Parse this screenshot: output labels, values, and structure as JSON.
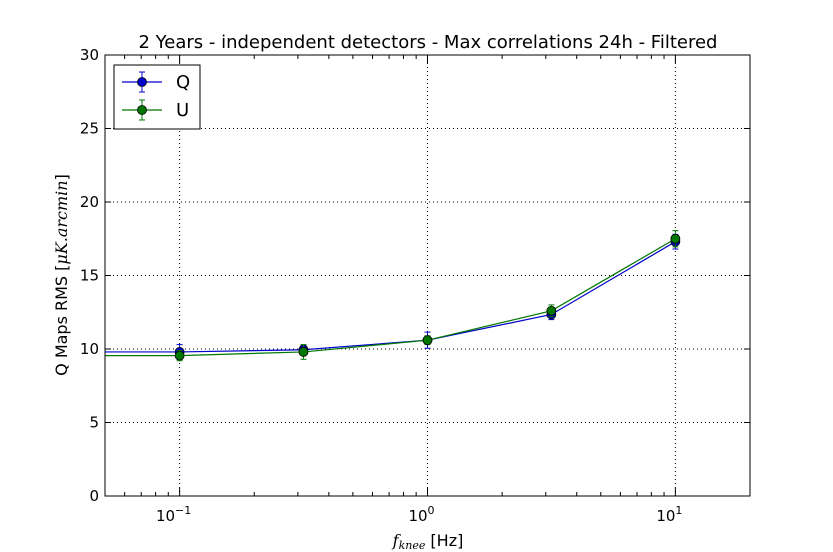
{
  "chart_data": {
    "type": "line",
    "title": "2 Years - independent detectors - Max correlations 24h - Filtered",
    "xlabel": {
      "symbol_main": "f",
      "symbol_sub": "knee",
      "unit": " [Hz]"
    },
    "ylabel": {
      "text": "Q Maps RMS [",
      "math": "μK.arcmin",
      "close": "]"
    },
    "xscale": "log",
    "xlim": [
      0.05,
      20
    ],
    "ylim": [
      0,
      30
    ],
    "grid": true,
    "legend_position": "top-left",
    "x_ticks": [
      {
        "value": 0.1,
        "base": "10",
        "exponent": "−1"
      },
      {
        "value": 1,
        "base": "10",
        "exponent": "0"
      },
      {
        "value": 10,
        "base": "10",
        "exponent": "1"
      }
    ],
    "y_ticks": [
      {
        "value": 0,
        "label": "0"
      },
      {
        "value": 5,
        "label": "5"
      },
      {
        "value": 10,
        "label": "10"
      },
      {
        "value": 15,
        "label": "15"
      },
      {
        "value": 20,
        "label": "20"
      },
      {
        "value": 25,
        "label": "25"
      },
      {
        "value": 30,
        "label": "30"
      }
    ],
    "x": [
      0.1,
      0.316,
      1,
      3.16,
      10
    ],
    "series": [
      {
        "name": "Q",
        "color": "#0000cc",
        "values": [
          9.8,
          9.95,
          10.6,
          12.35,
          17.3
        ],
        "errors": [
          0.5,
          0.3,
          0.55,
          0.35,
          0.5
        ]
      },
      {
        "name": "U",
        "color": "#007700",
        "values": [
          9.55,
          9.8,
          10.6,
          12.6,
          17.5
        ],
        "errors": [
          0.35,
          0.5,
          0.3,
          0.4,
          0.55
        ]
      }
    ]
  }
}
